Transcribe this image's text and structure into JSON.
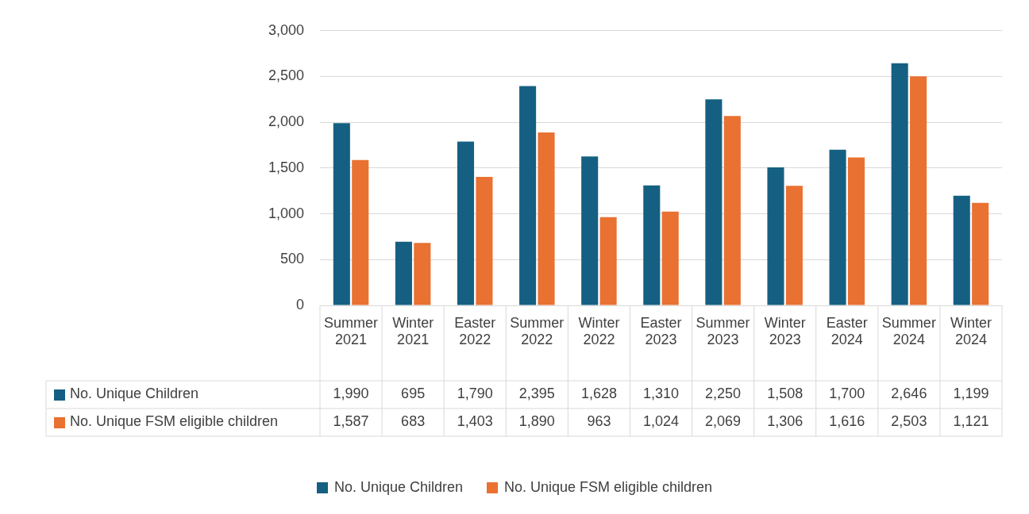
{
  "chart_data": {
    "type": "bar",
    "categories": [
      "Summer 2021",
      "Winter 2021",
      "Easter 2022",
      "Summer 2022",
      "Winter 2022",
      "Easter 2023",
      "Summer 2023",
      "Winter 2023",
      "Easter 2024",
      "Summer 2024",
      "Winter 2024"
    ],
    "series": [
      {
        "name": "No. Unique Children",
        "color": "#156082",
        "values": [
          1990,
          695,
          1790,
          2395,
          1628,
          1310,
          2250,
          1508,
          1700,
          2646,
          1199
        ],
        "value_labels": [
          "1,990",
          "695",
          "1,790",
          "2,395",
          "1,628",
          "1,310",
          "2,250",
          "1,508",
          "1,700",
          "2,646",
          "1,199"
        ]
      },
      {
        "name": "No. Unique FSM eligible children",
        "color": "#e97132",
        "values": [
          1587,
          683,
          1403,
          1890,
          963,
          1024,
          2069,
          1306,
          1616,
          2503,
          1121
        ],
        "value_labels": [
          "1,587",
          "683",
          "1,403",
          "1,890",
          "963",
          "1,024",
          "2,069",
          "1,306",
          "1,616",
          "2,503",
          "1,121"
        ]
      }
    ],
    "ylim": [
      0,
      3000
    ],
    "yticks": [
      0,
      {
        "value": 500,
        "label": "500"
      },
      {
        "value": 1000,
        "label": "1,000"
      },
      {
        "value": 1500,
        "label": "1,500"
      },
      {
        "value": 2000,
        "label": "2,000"
      },
      {
        "value": 2500,
        "label": "2,500"
      },
      {
        "value": 3000,
        "label": "3,000"
      }
    ],
    "grid": "y",
    "legend": "bottom"
  }
}
